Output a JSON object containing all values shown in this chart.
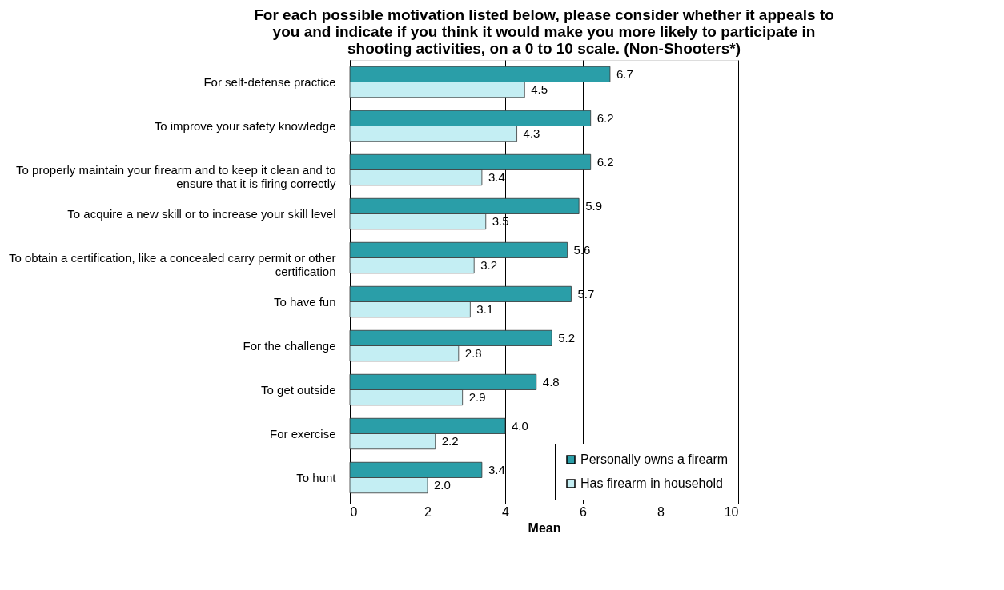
{
  "chart_data": {
    "type": "bar",
    "orientation": "horizontal",
    "title": "For each possible motivation listed below, please consider whether it appeals to you and indicate if you think it would make you more likely to participate in shooting activities, on a 0 to 10 scale. (Non-Shooters*)",
    "xlabel": "Mean",
    "categories": [
      "For self-defense practice",
      "To improve your safety knowledge",
      "To properly maintain your firearm and to keep it clean and to ensure that it is firing correctly",
      "To acquire a new skill or to increase your skill level",
      "To obtain a certification, like a concealed carry permit or other certification",
      "To have fun",
      "For the challenge",
      "To get outside",
      "For exercise",
      "To hunt"
    ],
    "series": [
      {
        "name": "Personally owns a firearm",
        "color": "#2a9ea8",
        "values": [
          6.7,
          6.2,
          6.2,
          5.9,
          5.6,
          5.7,
          5.2,
          4.8,
          4.0,
          3.4
        ],
        "value_labels": [
          "6.7",
          "6.2",
          "6.2",
          "5.9",
          "5.6",
          "5.7",
          "5.2",
          "4.8",
          "4.0",
          "3.4"
        ]
      },
      {
        "name": "Has firearm in household",
        "color": "#c4eef3",
        "values": [
          4.5,
          4.3,
          3.4,
          3.5,
          3.2,
          3.1,
          2.8,
          2.9,
          2.2,
          2.0
        ],
        "value_labels": [
          "4.5",
          "4.3",
          "3.4",
          "3.5",
          "3.2",
          "3.1",
          "2.8",
          "2.9",
          "2.2",
          "2.0"
        ]
      }
    ],
    "xlim": [
      0,
      10
    ],
    "xticks": [
      0,
      2,
      4,
      6,
      8,
      10
    ],
    "grid": "x",
    "legend": "bottom right"
  }
}
